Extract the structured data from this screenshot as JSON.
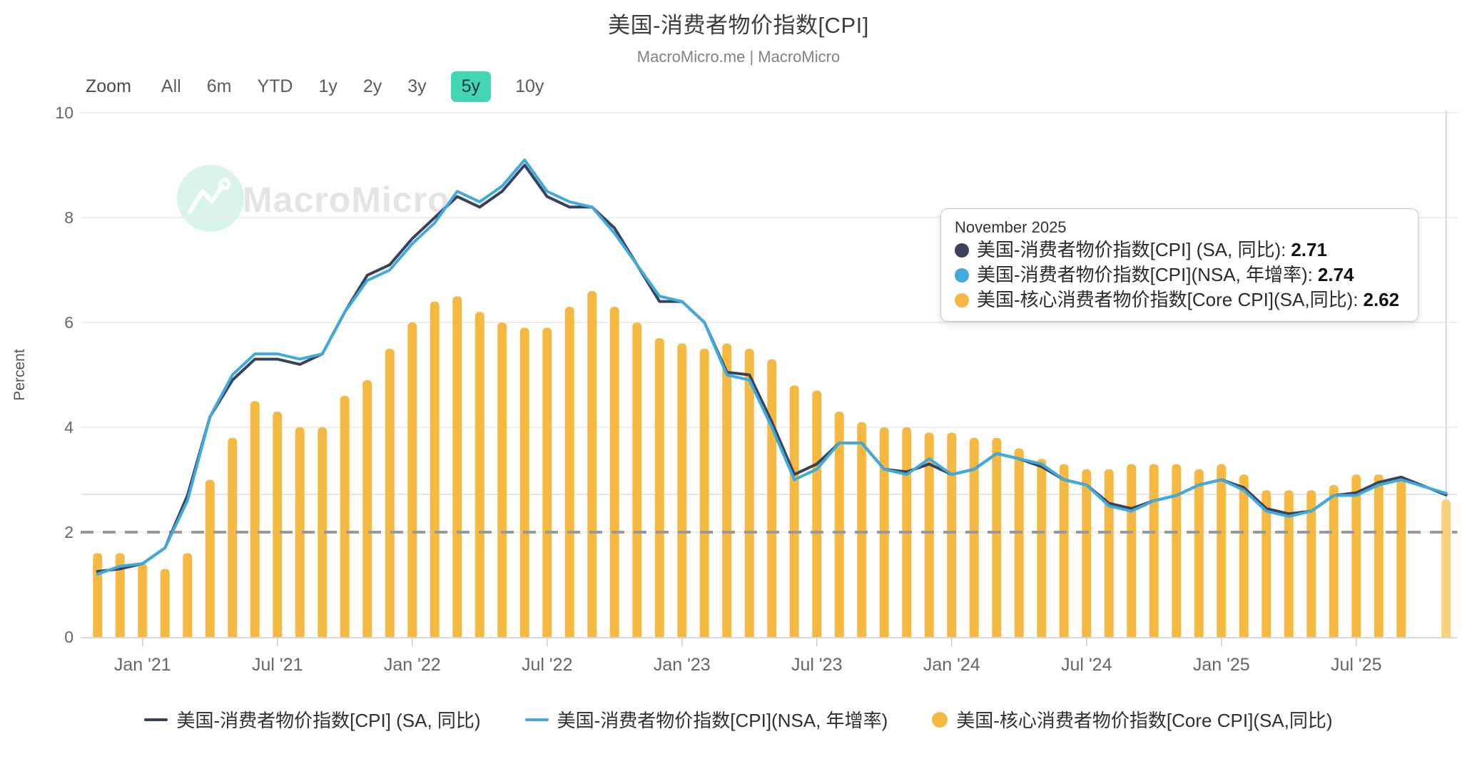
{
  "header": {
    "title": "美国-消费者物价指数[CPI]",
    "subtitle": "MacroMicro.me | MacroMicro"
  },
  "toolbar": {
    "zoom_label": "Zoom",
    "ranges": [
      "All",
      "6m",
      "YTD",
      "1y",
      "2y",
      "3y",
      "5y",
      "10y"
    ],
    "active_range": "5y",
    "active_bg_color": "#42d5b2",
    "active_text_color": "#20323e"
  },
  "watermark": {
    "text": "MacroMicro",
    "circle_color": "#d9f4ea",
    "logo_color": "#ffffff",
    "text_color": "#e4e4e4"
  },
  "tooltip": {
    "title": "November 2025",
    "rows": [
      {
        "color": "#39425a",
        "label": "美国-消费者物价指数[CPI] (SA, 同比): ",
        "value": "2.71"
      },
      {
        "color": "#41aadc",
        "label": "美国-消费者物价指数[CPI](NSA, 年增率): ",
        "value": "2.74"
      },
      {
        "color": "#f5b942",
        "label": "美国-核心消费者物价指数[Core CPI](SA,同比): ",
        "value": "2.62"
      }
    ]
  },
  "legend": {
    "items": [
      {
        "swatch": "line",
        "color": "#39425a",
        "label": "美国-消费者物价指数[CPI] (SA, 同比)"
      },
      {
        "swatch": "line",
        "color": "#41aadc",
        "label": "美国-消费者物价指数[CPI](NSA, 年增率)"
      },
      {
        "swatch": "circle",
        "color": "#f5b942",
        "label": "美国-核心消费者物价指数[Core CPI](SA,同比)"
      }
    ]
  },
  "chart_data": {
    "type": "mixed",
    "title": "美国-消费者物价指数[CPI]",
    "ylabel": "Percent",
    "ylim": [
      0,
      10
    ],
    "yticks": [
      0,
      2,
      4,
      6,
      8,
      10
    ],
    "grid": true,
    "threshold_line": {
      "value": 2,
      "style": "dashed",
      "color": "#999999"
    },
    "latest_value_line": {
      "value": 2.72,
      "color": "#dcdcdc"
    },
    "crosshair": {
      "index": 60,
      "color": "#d5d5d5"
    },
    "x": [
      "2020-11",
      "2020-12",
      "2021-01",
      "2021-02",
      "2021-03",
      "2021-04",
      "2021-05",
      "2021-06",
      "2021-07",
      "2021-08",
      "2021-09",
      "2021-10",
      "2021-11",
      "2021-12",
      "2022-01",
      "2022-02",
      "2022-03",
      "2022-04",
      "2022-05",
      "2022-06",
      "2022-07",
      "2022-08",
      "2022-09",
      "2022-10",
      "2022-11",
      "2022-12",
      "2023-01",
      "2023-02",
      "2023-03",
      "2023-04",
      "2023-05",
      "2023-06",
      "2023-07",
      "2023-08",
      "2023-09",
      "2023-10",
      "2023-11",
      "2023-12",
      "2024-01",
      "2024-02",
      "2024-03",
      "2024-04",
      "2024-05",
      "2024-06",
      "2024-07",
      "2024-08",
      "2024-09",
      "2024-10",
      "2024-11",
      "2024-12",
      "2025-01",
      "2025-02",
      "2025-03",
      "2025-04",
      "2025-05",
      "2025-06",
      "2025-07",
      "2025-08",
      "2025-09",
      "2025-10",
      "2025-11"
    ],
    "x_ticks": [
      {
        "index": 2,
        "label": "Jan '21"
      },
      {
        "index": 8,
        "label": "Jul '21"
      },
      {
        "index": 14,
        "label": "Jan '22"
      },
      {
        "index": 20,
        "label": "Jul '22"
      },
      {
        "index": 26,
        "label": "Jan '23"
      },
      {
        "index": 32,
        "label": "Jul '23"
      },
      {
        "index": 38,
        "label": "Jan '24"
      },
      {
        "index": 44,
        "label": "Jul '24"
      },
      {
        "index": 50,
        "label": "Jan '25"
      },
      {
        "index": 56,
        "label": "Jul '25"
      }
    ],
    "series": [
      {
        "name": "美国-消费者物价指数[CPI] (SA, 同比)",
        "type": "line",
        "color": "#39425a",
        "values": [
          1.25,
          1.3,
          1.4,
          1.7,
          2.7,
          4.2,
          4.9,
          5.3,
          5.3,
          5.2,
          5.4,
          6.2,
          6.9,
          7.1,
          7.6,
          8.0,
          8.4,
          8.2,
          8.5,
          9.0,
          8.4,
          8.2,
          8.2,
          7.8,
          7.1,
          6.4,
          6.4,
          6.0,
          5.05,
          5.0,
          4.1,
          3.1,
          3.3,
          3.7,
          3.7,
          3.2,
          3.15,
          3.3,
          3.1,
          3.2,
          3.5,
          3.4,
          3.25,
          3.0,
          2.9,
          2.55,
          2.45,
          2.6,
          2.7,
          2.9,
          3.0,
          2.85,
          2.45,
          2.35,
          2.4,
          2.7,
          2.75,
          2.95,
          3.05,
          null,
          2.71
        ]
      },
      {
        "name": "美国-消费者物价指数[CPI](NSA, 年增率)",
        "type": "line",
        "color": "#41aadc",
        "values": [
          1.2,
          1.35,
          1.4,
          1.7,
          2.6,
          4.2,
          5.0,
          5.4,
          5.4,
          5.3,
          5.4,
          6.2,
          6.8,
          7.0,
          7.5,
          7.9,
          8.5,
          8.3,
          8.6,
          9.1,
          8.5,
          8.3,
          8.2,
          7.7,
          7.1,
          6.5,
          6.4,
          6.0,
          5.0,
          4.9,
          4.0,
          3.0,
          3.2,
          3.7,
          3.7,
          3.2,
          3.1,
          3.4,
          3.1,
          3.2,
          3.5,
          3.4,
          3.3,
          3.0,
          2.9,
          2.5,
          2.4,
          2.6,
          2.7,
          2.9,
          3.0,
          2.8,
          2.4,
          2.3,
          2.4,
          2.7,
          2.7,
          2.9,
          3.0,
          null,
          2.74
        ]
      },
      {
        "name": "美国-核心消费者物价指数[Core CPI](SA,同比)",
        "type": "bar",
        "color": "#f5b942",
        "hover_color": "#f9d07a",
        "hover_index": 60,
        "values": [
          1.6,
          1.6,
          1.4,
          1.3,
          1.6,
          3.0,
          3.8,
          4.5,
          4.3,
          4.0,
          4.0,
          4.6,
          4.9,
          5.5,
          6.0,
          6.4,
          6.5,
          6.2,
          6.0,
          5.9,
          5.9,
          6.3,
          6.6,
          6.3,
          6.0,
          5.7,
          5.6,
          5.5,
          5.6,
          5.5,
          5.3,
          4.8,
          4.7,
          4.3,
          4.1,
          4.0,
          4.0,
          3.9,
          3.9,
          3.8,
          3.8,
          3.6,
          3.4,
          3.3,
          3.2,
          3.2,
          3.3,
          3.3,
          3.3,
          3.2,
          3.3,
          3.1,
          2.8,
          2.8,
          2.8,
          2.9,
          3.1,
          3.1,
          3.0,
          null,
          2.62
        ]
      }
    ]
  }
}
